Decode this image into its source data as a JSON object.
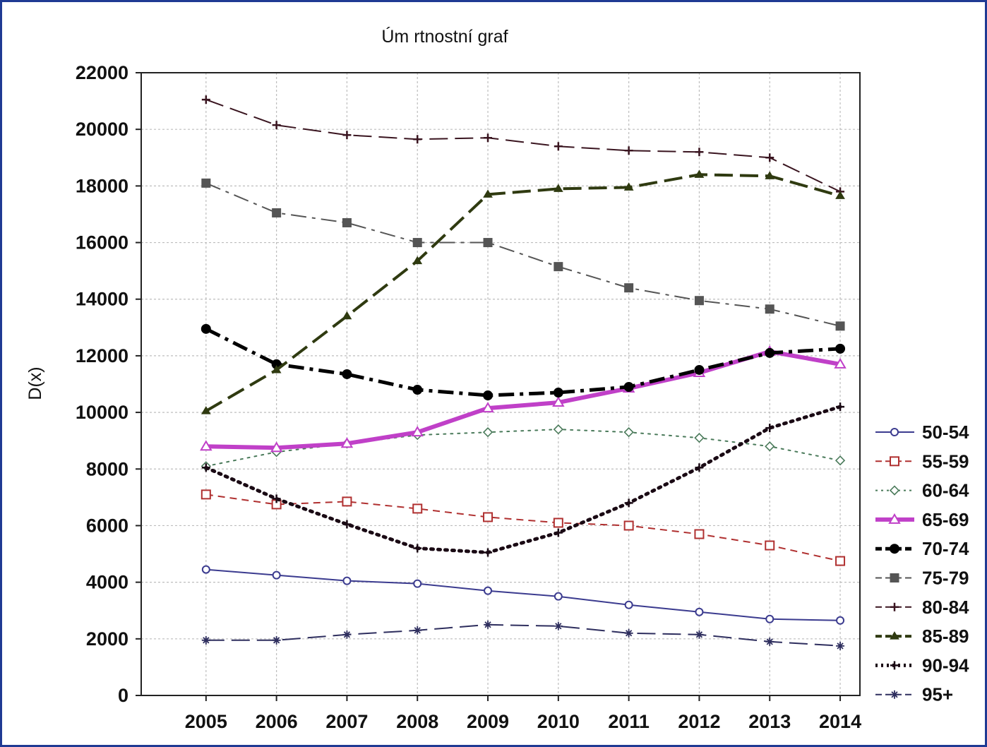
{
  "chart_data": {
    "type": "line",
    "title": "Úm rtnostní graf",
    "xlabel": "",
    "ylabel": "D(x)",
    "x": [
      "2005",
      "2006",
      "2007",
      "2008",
      "2009",
      "2010",
      "2011",
      "2012",
      "2013",
      "2014"
    ],
    "ylim": [
      0,
      22000
    ],
    "yticks": [
      "0",
      "2000",
      "4000",
      "6000",
      "8000",
      "10000",
      "12000",
      "14000",
      "16000",
      "18000",
      "20000",
      "22000"
    ],
    "grid": true,
    "legend_position": "right",
    "series": [
      {
        "name": "50-54",
        "color": "#3b3b8f",
        "marker": "circle",
        "dash": "solid",
        "width": 2,
        "values": [
          4450,
          4250,
          4050,
          3950,
          3700,
          3500,
          3200,
          2950,
          2700,
          2650
        ]
      },
      {
        "name": "55-59",
        "color": "#b03030",
        "marker": "square-open",
        "dash": "dashed",
        "width": 2,
        "values": [
          7100,
          6750,
          6850,
          6600,
          6300,
          6100,
          6000,
          5700,
          5300,
          4750
        ]
      },
      {
        "name": "60-64",
        "color": "#4a7a5a",
        "marker": "diamond-open",
        "dash": "dotted",
        "width": 2,
        "values": [
          8100,
          8600,
          8900,
          9200,
          9300,
          9400,
          9300,
          9100,
          8800,
          8300
        ]
      },
      {
        "name": "65-69",
        "color": "#c040c8",
        "marker": "triangle",
        "dash": "solid",
        "width": 6,
        "values": [
          8800,
          8750,
          8900,
          9300,
          10150,
          10350,
          10850,
          11400,
          12150,
          11700
        ]
      },
      {
        "name": "70-74",
        "color": "#000000",
        "marker": "circle-filled",
        "dash": "dashdot",
        "width": 5,
        "values": [
          12950,
          11700,
          11350,
          10800,
          10600,
          10700,
          10900,
          11500,
          12100,
          12250
        ]
      },
      {
        "name": "75-79",
        "color": "#555555",
        "marker": "square",
        "dash": "dashdot",
        "width": 2,
        "values": [
          18100,
          17050,
          16700,
          16000,
          16000,
          15150,
          14400,
          13950,
          13650,
          13050
        ]
      },
      {
        "name": "80-84",
        "color": "#3a1520",
        "marker": "plus",
        "dash": "longdash",
        "width": 2,
        "values": [
          21050,
          20150,
          19800,
          19650,
          19700,
          19400,
          19250,
          19200,
          19000,
          17800
        ]
      },
      {
        "name": "85-89",
        "color": "#2f3a10",
        "marker": "triangle-small",
        "dash": "longdash",
        "width": 4,
        "values": [
          10050,
          11500,
          13400,
          15350,
          17700,
          17900,
          17950,
          18400,
          18350,
          17650
        ]
      },
      {
        "name": "90-94",
        "color": "#1a0a14",
        "marker": "plus",
        "dash": "dotted",
        "width": 5,
        "values": [
          8050,
          6950,
          6050,
          5200,
          5050,
          5750,
          6800,
          8050,
          9450,
          10200
        ]
      },
      {
        "name": "95+",
        "color": "#2e2e5e",
        "marker": "star",
        "dash": "longdash",
        "width": 2,
        "values": [
          1950,
          1950,
          2150,
          2300,
          2500,
          2450,
          2200,
          2150,
          1900,
          1750
        ]
      }
    ]
  }
}
